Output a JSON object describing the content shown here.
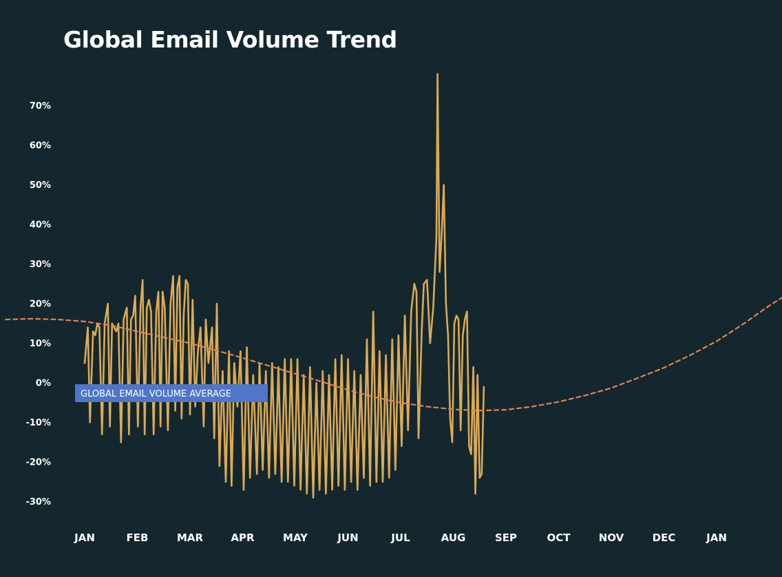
{
  "chart_data": {
    "type": "line",
    "title": "Global Email Volume Trend",
    "xlabel": "",
    "ylabel": "",
    "ylim": [
      -35,
      80
    ],
    "y_ticks": [
      {
        "value": 70,
        "label": "70%"
      },
      {
        "value": 60,
        "label": "60%"
      },
      {
        "value": 50,
        "label": "50%"
      },
      {
        "value": 40,
        "label": "40%"
      },
      {
        "value": 30,
        "label": "30%"
      },
      {
        "value": 20,
        "label": "20%"
      },
      {
        "value": 10,
        "label": "10%"
      },
      {
        "value": 0,
        "label": "0%"
      },
      {
        "value": -10,
        "label": "-10%"
      },
      {
        "value": -20,
        "label": "-20%"
      },
      {
        "value": -30,
        "label": "-30%"
      }
    ],
    "x_ticks": [
      {
        "month": 0,
        "label": "JAN"
      },
      {
        "month": 1,
        "label": "FEB"
      },
      {
        "month": 2,
        "label": "MAR"
      },
      {
        "month": 3,
        "label": "APR"
      },
      {
        "month": 4,
        "label": "MAY"
      },
      {
        "month": 5,
        "label": "JUN"
      },
      {
        "month": 6,
        "label": "JUL"
      },
      {
        "month": 7,
        "label": "AUG"
      },
      {
        "month": 8,
        "label": "SEP"
      },
      {
        "month": 9,
        "label": "OCT"
      },
      {
        "month": 10,
        "label": "NOV"
      },
      {
        "month": 11,
        "label": "DEC"
      },
      {
        "month": 12,
        "label": "JAN"
      }
    ],
    "grid": false,
    "reference_line": {
      "value": 0,
      "label": "GLOBAL EMAIL VOLUME AVERAGE"
    },
    "series": [
      {
        "kind": "daily",
        "color": "#dcaa55",
        "points": [
          [
            0.0,
            5
          ],
          [
            0.06,
            14
          ],
          [
            0.1,
            -10
          ],
          [
            0.16,
            13
          ],
          [
            0.2,
            12
          ],
          [
            0.24,
            15
          ],
          [
            0.28,
            14
          ],
          [
            0.33,
            -13
          ],
          [
            0.38,
            15
          ],
          [
            0.44,
            20
          ],
          [
            0.48,
            -11
          ],
          [
            0.52,
            15
          ],
          [
            0.56,
            14
          ],
          [
            0.6,
            13
          ],
          [
            0.64,
            15
          ],
          [
            0.69,
            -15
          ],
          [
            0.74,
            16
          ],
          [
            0.8,
            19
          ],
          [
            0.84,
            -13
          ],
          [
            0.88,
            16
          ],
          [
            0.92,
            17
          ],
          [
            0.96,
            22
          ],
          [
            1.01,
            -11
          ],
          [
            1.06,
            19
          ],
          [
            1.1,
            26
          ],
          [
            1.14,
            -13
          ],
          [
            1.18,
            19
          ],
          [
            1.22,
            21
          ],
          [
            1.26,
            18
          ],
          [
            1.31,
            -13
          ],
          [
            1.36,
            18
          ],
          [
            1.4,
            23
          ],
          [
            1.44,
            -11
          ],
          [
            1.48,
            23
          ],
          [
            1.52,
            19
          ],
          [
            1.58,
            -12
          ],
          [
            1.63,
            20
          ],
          [
            1.68,
            27
          ],
          [
            1.72,
            -7
          ],
          [
            1.76,
            24
          ],
          [
            1.8,
            27
          ],
          [
            1.84,
            -9
          ],
          [
            1.88,
            17
          ],
          [
            1.92,
            26
          ],
          [
            1.96,
            25
          ],
          [
            2.0,
            -8
          ],
          [
            2.05,
            21
          ],
          [
            2.1,
            -6
          ],
          [
            2.15,
            8
          ],
          [
            2.2,
            14
          ],
          [
            2.26,
            -11
          ],
          [
            2.3,
            16
          ],
          [
            2.35,
            5
          ],
          [
            2.42,
            14
          ],
          [
            2.46,
            -14
          ],
          [
            2.51,
            20
          ],
          [
            2.56,
            -21
          ],
          [
            2.62,
            3
          ],
          [
            2.68,
            -25
          ],
          [
            2.74,
            8
          ],
          [
            2.79,
            -26
          ],
          [
            2.84,
            5
          ],
          [
            2.9,
            -6
          ],
          [
            2.96,
            8
          ],
          [
            3.02,
            -27
          ],
          [
            3.08,
            9
          ],
          [
            3.14,
            -24
          ],
          [
            3.2,
            2
          ],
          [
            3.27,
            -23
          ],
          [
            3.32,
            5
          ],
          [
            3.38,
            -22
          ],
          [
            3.44,
            3
          ],
          [
            3.5,
            -24
          ],
          [
            3.56,
            5
          ],
          [
            3.62,
            -23
          ],
          [
            3.68,
            4
          ],
          [
            3.74,
            -25
          ],
          [
            3.8,
            6
          ],
          [
            3.86,
            -25
          ],
          [
            3.92,
            6
          ],
          [
            3.98,
            -26
          ],
          [
            4.04,
            6
          ],
          [
            4.1,
            -27
          ],
          [
            4.16,
            2
          ],
          [
            4.22,
            -28
          ],
          [
            4.28,
            4
          ],
          [
            4.34,
            -29
          ],
          [
            4.4,
            0
          ],
          [
            4.46,
            -27
          ],
          [
            4.52,
            3
          ],
          [
            4.58,
            -28
          ],
          [
            4.64,
            2
          ],
          [
            4.7,
            -27
          ],
          [
            4.76,
            6
          ],
          [
            4.82,
            -26
          ],
          [
            4.88,
            7
          ],
          [
            4.94,
            -27
          ],
          [
            5.0,
            6
          ],
          [
            5.06,
            -25
          ],
          [
            5.12,
            3
          ],
          [
            5.18,
            -27
          ],
          [
            5.24,
            2
          ],
          [
            5.3,
            -24
          ],
          [
            5.36,
            11
          ],
          [
            5.42,
            -26
          ],
          [
            5.48,
            18
          ],
          [
            5.54,
            -25
          ],
          [
            5.6,
            8
          ],
          [
            5.66,
            -25
          ],
          [
            5.72,
            7
          ],
          [
            5.78,
            -24
          ],
          [
            5.84,
            11
          ],
          [
            5.9,
            -22
          ],
          [
            5.96,
            12
          ],
          [
            6.02,
            -16
          ],
          [
            6.08,
            17
          ],
          [
            6.14,
            -12
          ],
          [
            6.2,
            18
          ],
          [
            6.26,
            25
          ],
          [
            6.3,
            23
          ],
          [
            6.34,
            -14
          ],
          [
            6.4,
            13
          ],
          [
            6.44,
            25
          ],
          [
            6.5,
            26
          ],
          [
            6.56,
            10
          ],
          [
            6.62,
            19
          ],
          [
            6.68,
            37
          ],
          [
            6.7,
            78
          ],
          [
            6.74,
            28
          ],
          [
            6.78,
            38
          ],
          [
            6.82,
            50
          ],
          [
            6.86,
            20
          ],
          [
            6.9,
            12
          ],
          [
            6.94,
            -9
          ],
          [
            6.98,
            -15
          ],
          [
            7.02,
            15
          ],
          [
            7.06,
            17
          ],
          [
            7.1,
            16
          ],
          [
            7.14,
            -12
          ],
          [
            7.18,
            12
          ],
          [
            7.22,
            16
          ],
          [
            7.26,
            18
          ],
          [
            7.3,
            -16
          ],
          [
            7.34,
            -18
          ],
          [
            7.38,
            4
          ],
          [
            7.42,
            -28
          ],
          [
            7.46,
            2
          ],
          [
            7.5,
            -24
          ],
          [
            7.54,
            -23
          ],
          [
            7.58,
            -1
          ]
        ]
      },
      {
        "kind": "trend",
        "color": "#e08455",
        "dash": true,
        "points": [
          [
            -1.5,
            16
          ],
          [
            -1.0,
            16.2
          ],
          [
            -0.5,
            16
          ],
          [
            0.0,
            15.5
          ],
          [
            0.5,
            14.5
          ],
          [
            1.0,
            13
          ],
          [
            1.5,
            11.5
          ],
          [
            2.0,
            10
          ],
          [
            2.5,
            8.2
          ],
          [
            3.0,
            6.3
          ],
          [
            3.5,
            4.3
          ],
          [
            4.0,
            2.3
          ],
          [
            4.5,
            0.3
          ],
          [
            5.0,
            -1.8
          ],
          [
            5.5,
            -3.6
          ],
          [
            6.0,
            -5.0
          ],
          [
            6.5,
            -6.0
          ],
          [
            7.0,
            -6.7
          ],
          [
            7.5,
            -7.0
          ],
          [
            8.0,
            -6.8
          ],
          [
            8.5,
            -6.0
          ],
          [
            9.0,
            -4.8
          ],
          [
            9.5,
            -3.2
          ],
          [
            10.0,
            -1.3
          ],
          [
            10.5,
            1.2
          ],
          [
            11.0,
            3.8
          ],
          [
            11.5,
            7.0
          ],
          [
            12.0,
            10.5
          ],
          [
            12.5,
            14.8
          ],
          [
            13.0,
            19.5
          ],
          [
            13.3,
            22
          ]
        ]
      }
    ],
    "colors": {
      "background": "#14272e",
      "daily_line": "#dcaa55",
      "trend_line": "#e08455",
      "avg_line_left": "#4f76c9",
      "avg_line_right": "#3fb59e",
      "avg_label_bg": "#4f76c9"
    }
  }
}
